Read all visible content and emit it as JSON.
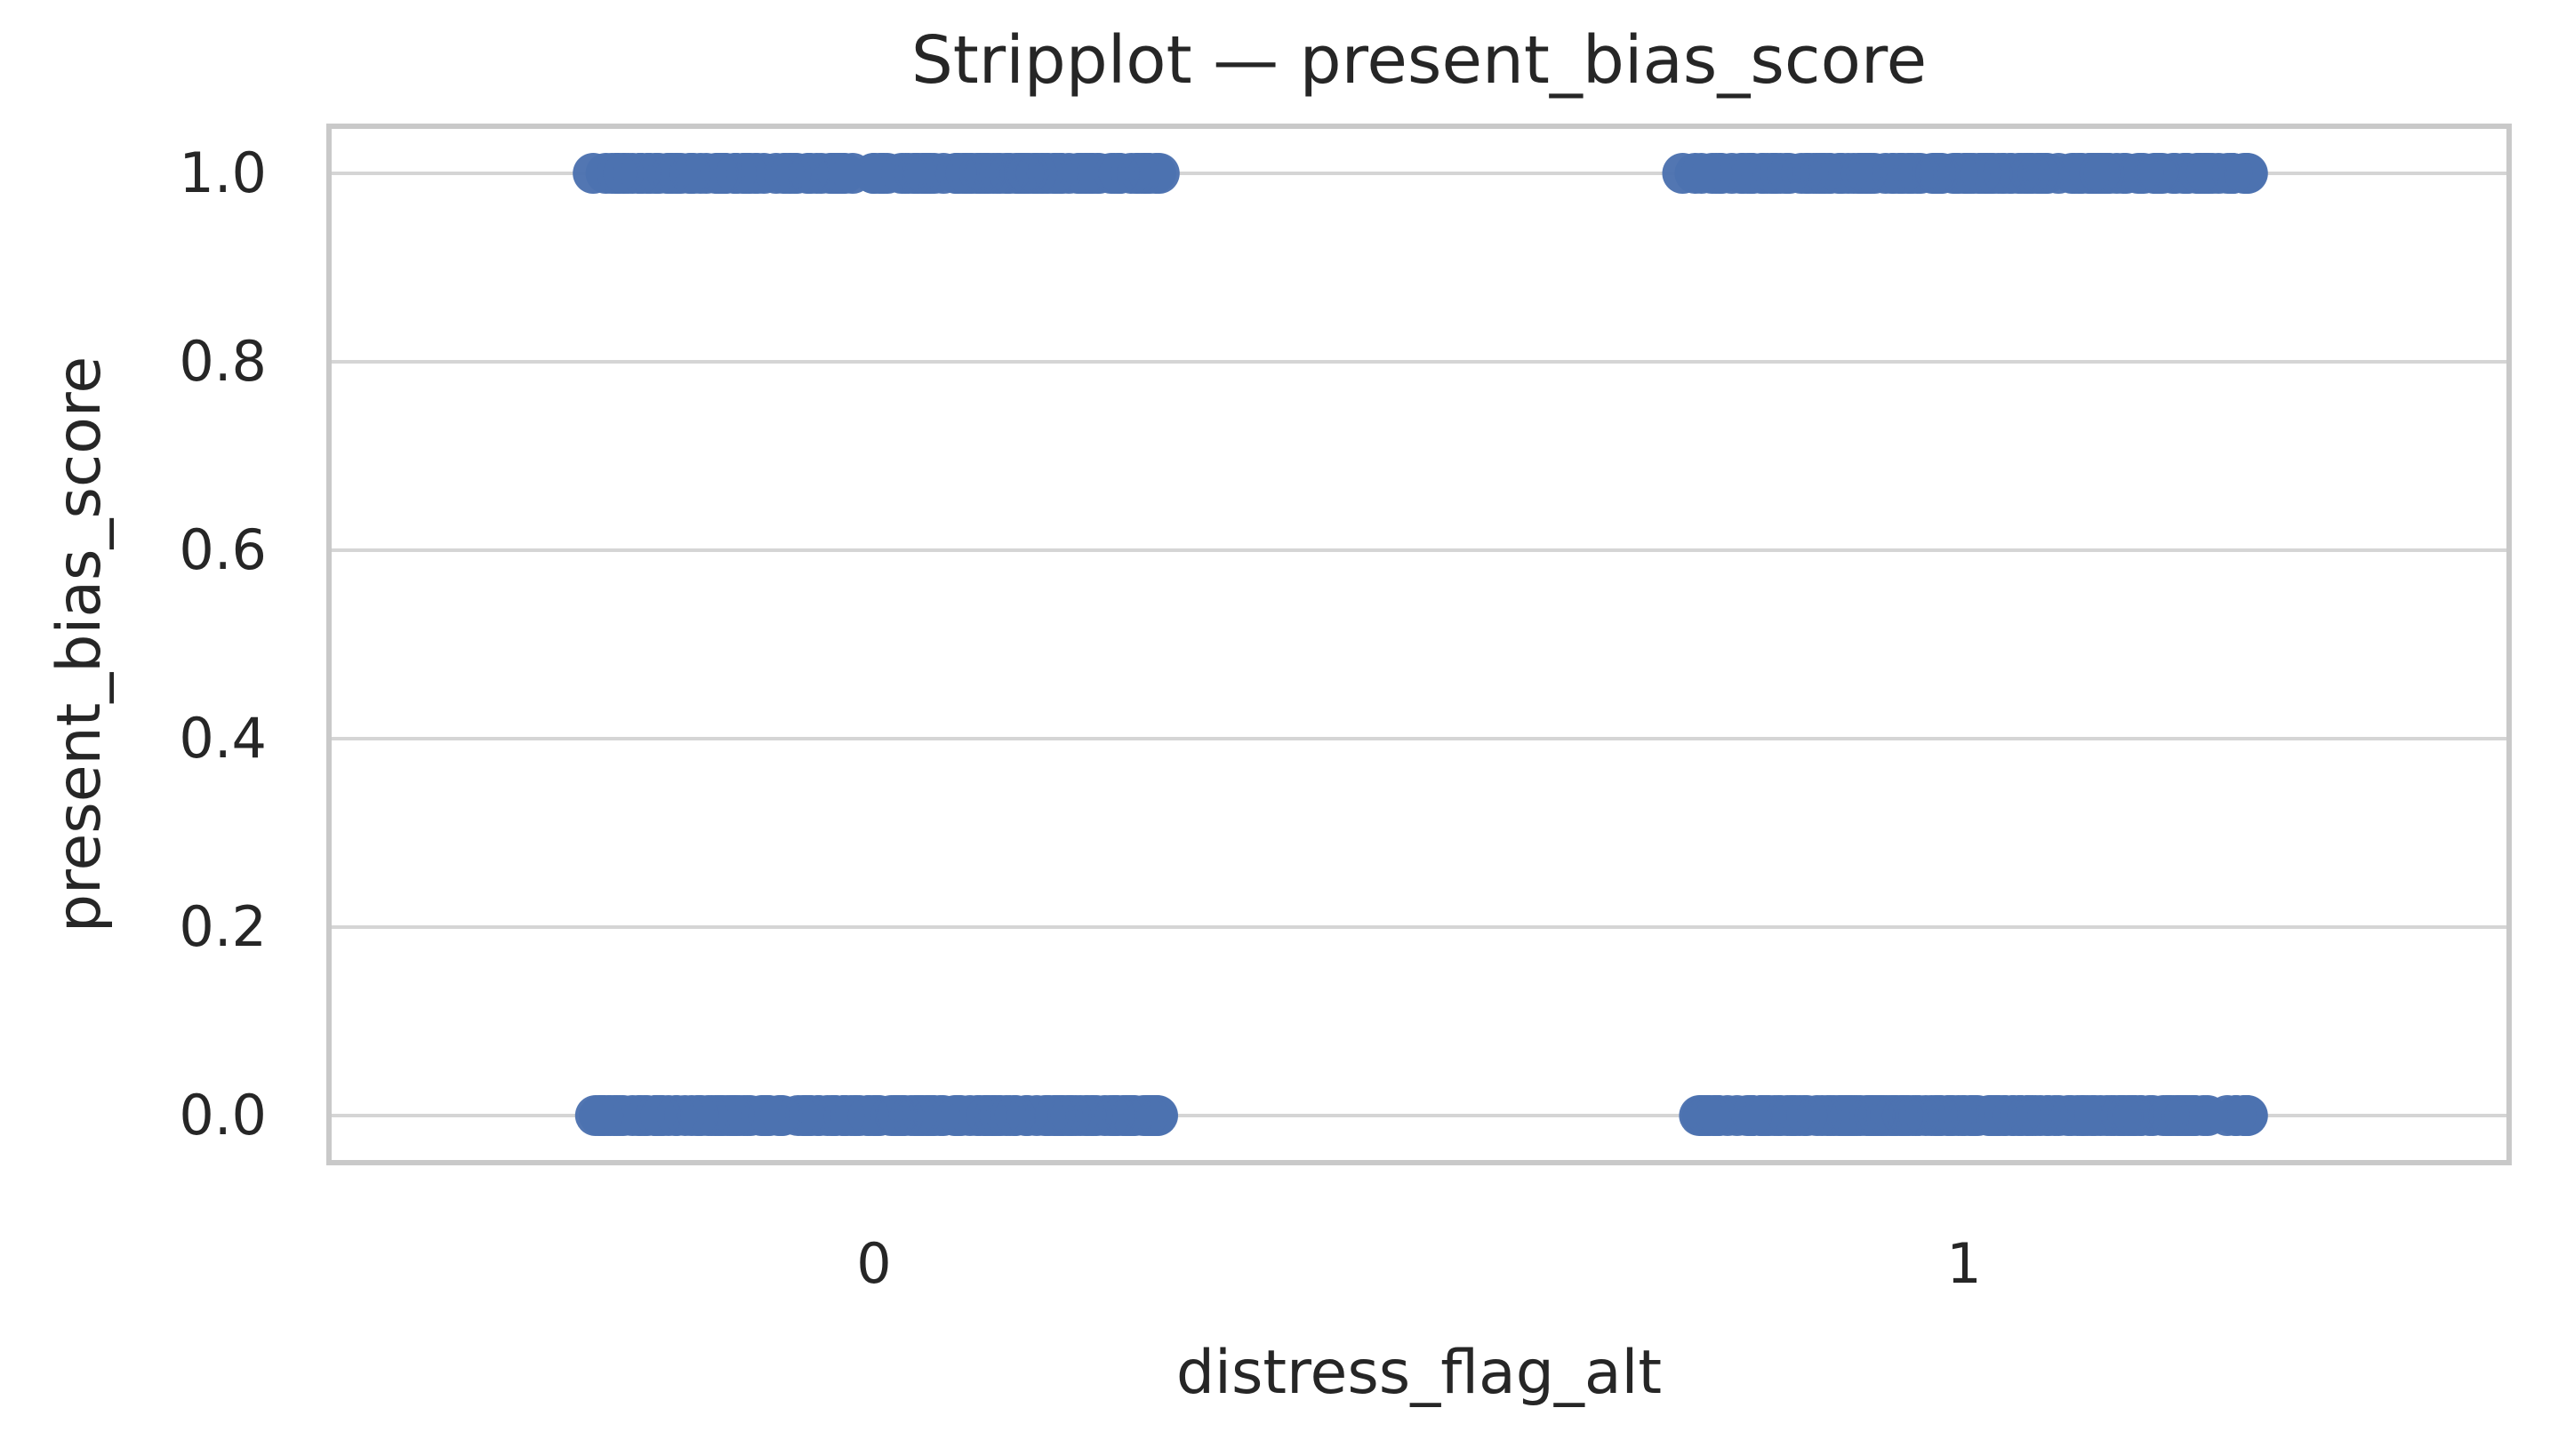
{
  "chart_data": {
    "type": "scatter",
    "subtype": "stripplot",
    "title": "Stripplot — present_bias_score",
    "xlabel": "distress_flag_alt",
    "ylabel": "present_bias_score",
    "categories": [
      "0",
      "1"
    ],
    "yticks": [
      "0.0",
      "0.2",
      "0.4",
      "0.6",
      "0.8",
      "1.0"
    ],
    "ytick_values": [
      0.0,
      0.2,
      0.4,
      0.6,
      0.8,
      1.0
    ],
    "ylim": [
      -0.05,
      1.05
    ],
    "grid": "horizontal gridlines only, light gray, boxed axes",
    "legend": "none",
    "series": [
      {
        "category": "0",
        "clusters": [
          {
            "y": 0.0,
            "approx_count": 170
          },
          {
            "y": 1.0,
            "approx_count": 170
          }
        ]
      },
      {
        "category": "1",
        "clusters": [
          {
            "y": 0.0,
            "approx_count": 170
          },
          {
            "y": 1.0,
            "approx_count": 170
          }
        ]
      }
    ],
    "jitter_halfwidth_fraction": 0.262,
    "marker_radius_px": 23,
    "random_seed": 42,
    "colors": {
      "points": "#4C72B0",
      "grid": "#D5D5D5",
      "spines": "#C9C9C9",
      "text": "#262626",
      "background": "#FFFFFF"
    }
  }
}
